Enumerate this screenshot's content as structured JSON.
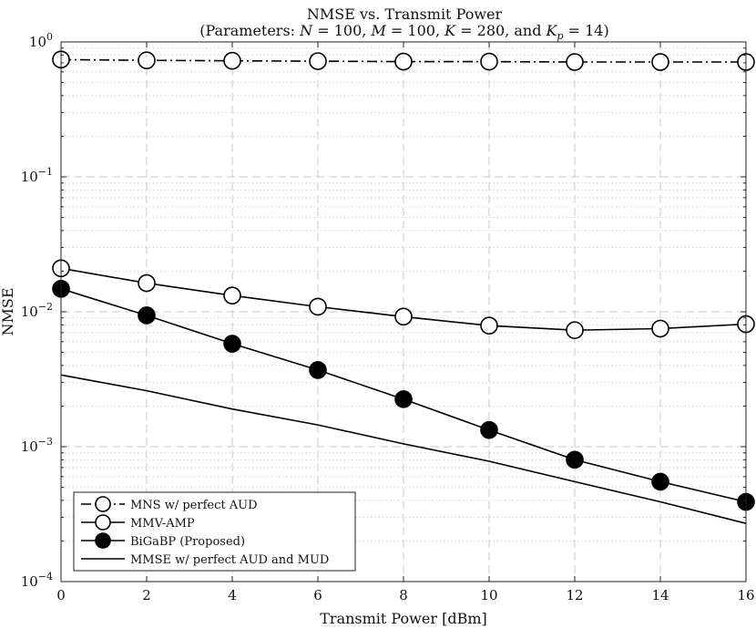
{
  "chart_data": {
    "type": "line",
    "title": "NMSE vs. Transmit Power",
    "subtitle": "(Parameters: N = 100, M = 100, K = 280, and Kp = 14)",
    "subtitle_parts": {
      "open": "(Parameters: ",
      "N": "N",
      "N_eq": " = 100, ",
      "M": "M",
      "M_eq": " = 100, ",
      "K": "K",
      "K_eq": " = 280, and ",
      "Kp": "K",
      "p": "p",
      "Kp_eq": " = 14)"
    },
    "xlabel": "Transmit Power [dBm]",
    "ylabel": "NMSE",
    "yscale": "log",
    "xlim": [
      0,
      16
    ],
    "ylim": [
      0.0001,
      1
    ],
    "xticks": [
      0,
      2,
      4,
      6,
      8,
      10,
      12,
      14,
      16
    ],
    "xtick_labels": [
      "0",
      "2",
      "4",
      "6",
      "8",
      "10",
      "12",
      "14",
      "16"
    ],
    "yticks": [
      {
        "value": 1,
        "base": "10",
        "exp": "0"
      },
      {
        "value": 0.1,
        "base": "10",
        "exp": "−1"
      },
      {
        "value": 0.01,
        "base": "10",
        "exp": "−2"
      },
      {
        "value": 0.001,
        "base": "10",
        "exp": "−3"
      },
      {
        "value": 0.0001,
        "base": "10",
        "exp": "−4"
      }
    ],
    "grid": true,
    "legend_position": "bottom-left",
    "x": [
      0,
      2,
      4,
      6,
      8,
      10,
      12,
      14,
      16
    ],
    "series": [
      {
        "name": "MNS w/ perfect AUD",
        "line": "dashdot",
        "marker": "open-circle",
        "values": [
          0.74,
          0.73,
          0.725,
          0.72,
          0.715,
          0.715,
          0.71,
          0.71,
          0.71
        ]
      },
      {
        "name": "MMV-AMP",
        "line": "solid",
        "marker": "open-circle",
        "values": [
          0.021,
          0.0163,
          0.0132,
          0.0109,
          0.0092,
          0.0079,
          0.0073,
          0.0075,
          0.0081
        ]
      },
      {
        "name": "BiGaBP (Proposed)",
        "line": "solid",
        "marker": "filled-circle",
        "values": [
          0.0148,
          0.0094,
          0.0058,
          0.0037,
          0.00225,
          0.00133,
          0.0008,
          0.00055,
          0.00039
        ]
      },
      {
        "name": "MMSE w/ perfect AUD and MUD",
        "line": "solid",
        "marker": "none",
        "values": [
          0.0034,
          0.0026,
          0.0019,
          0.00145,
          0.00105,
          0.00078,
          0.00055,
          0.00039,
          0.00027
        ]
      }
    ]
  }
}
